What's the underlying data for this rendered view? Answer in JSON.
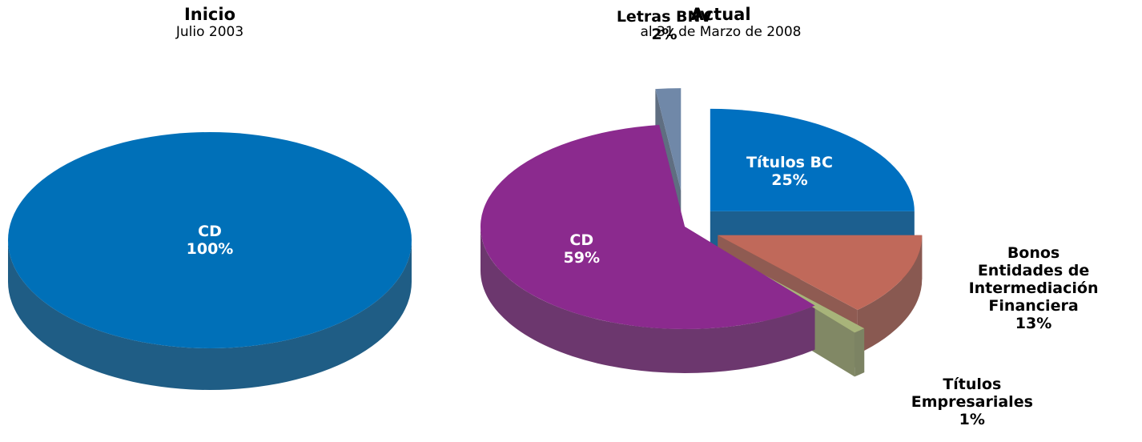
{
  "chart_data": [
    {
      "type": "pie",
      "title": "Inicio",
      "subtitle": "Julio 2003",
      "categories": [
        "CD"
      ],
      "values": [
        100
      ],
      "value_labels": [
        "100%"
      ],
      "colors": [
        "#0070b8"
      ]
    },
    {
      "type": "pie",
      "title": "Actual",
      "subtitle": "al 31 de Marzo de 2008",
      "categories": [
        "Títulos BC",
        "Bonos Entidades de Intermediación Financiera",
        "Títulos Empresariales",
        "CD",
        "Letras BNV"
      ],
      "values": [
        25,
        13,
        1,
        59,
        2
      ],
      "value_labels": [
        "25%",
        "13%",
        "1%",
        "59%",
        "2%"
      ],
      "colors": [
        "#0070c0",
        "#c0695a",
        "#a8b47a",
        "#8b2a8e",
        "#7088a8"
      ]
    }
  ]
}
